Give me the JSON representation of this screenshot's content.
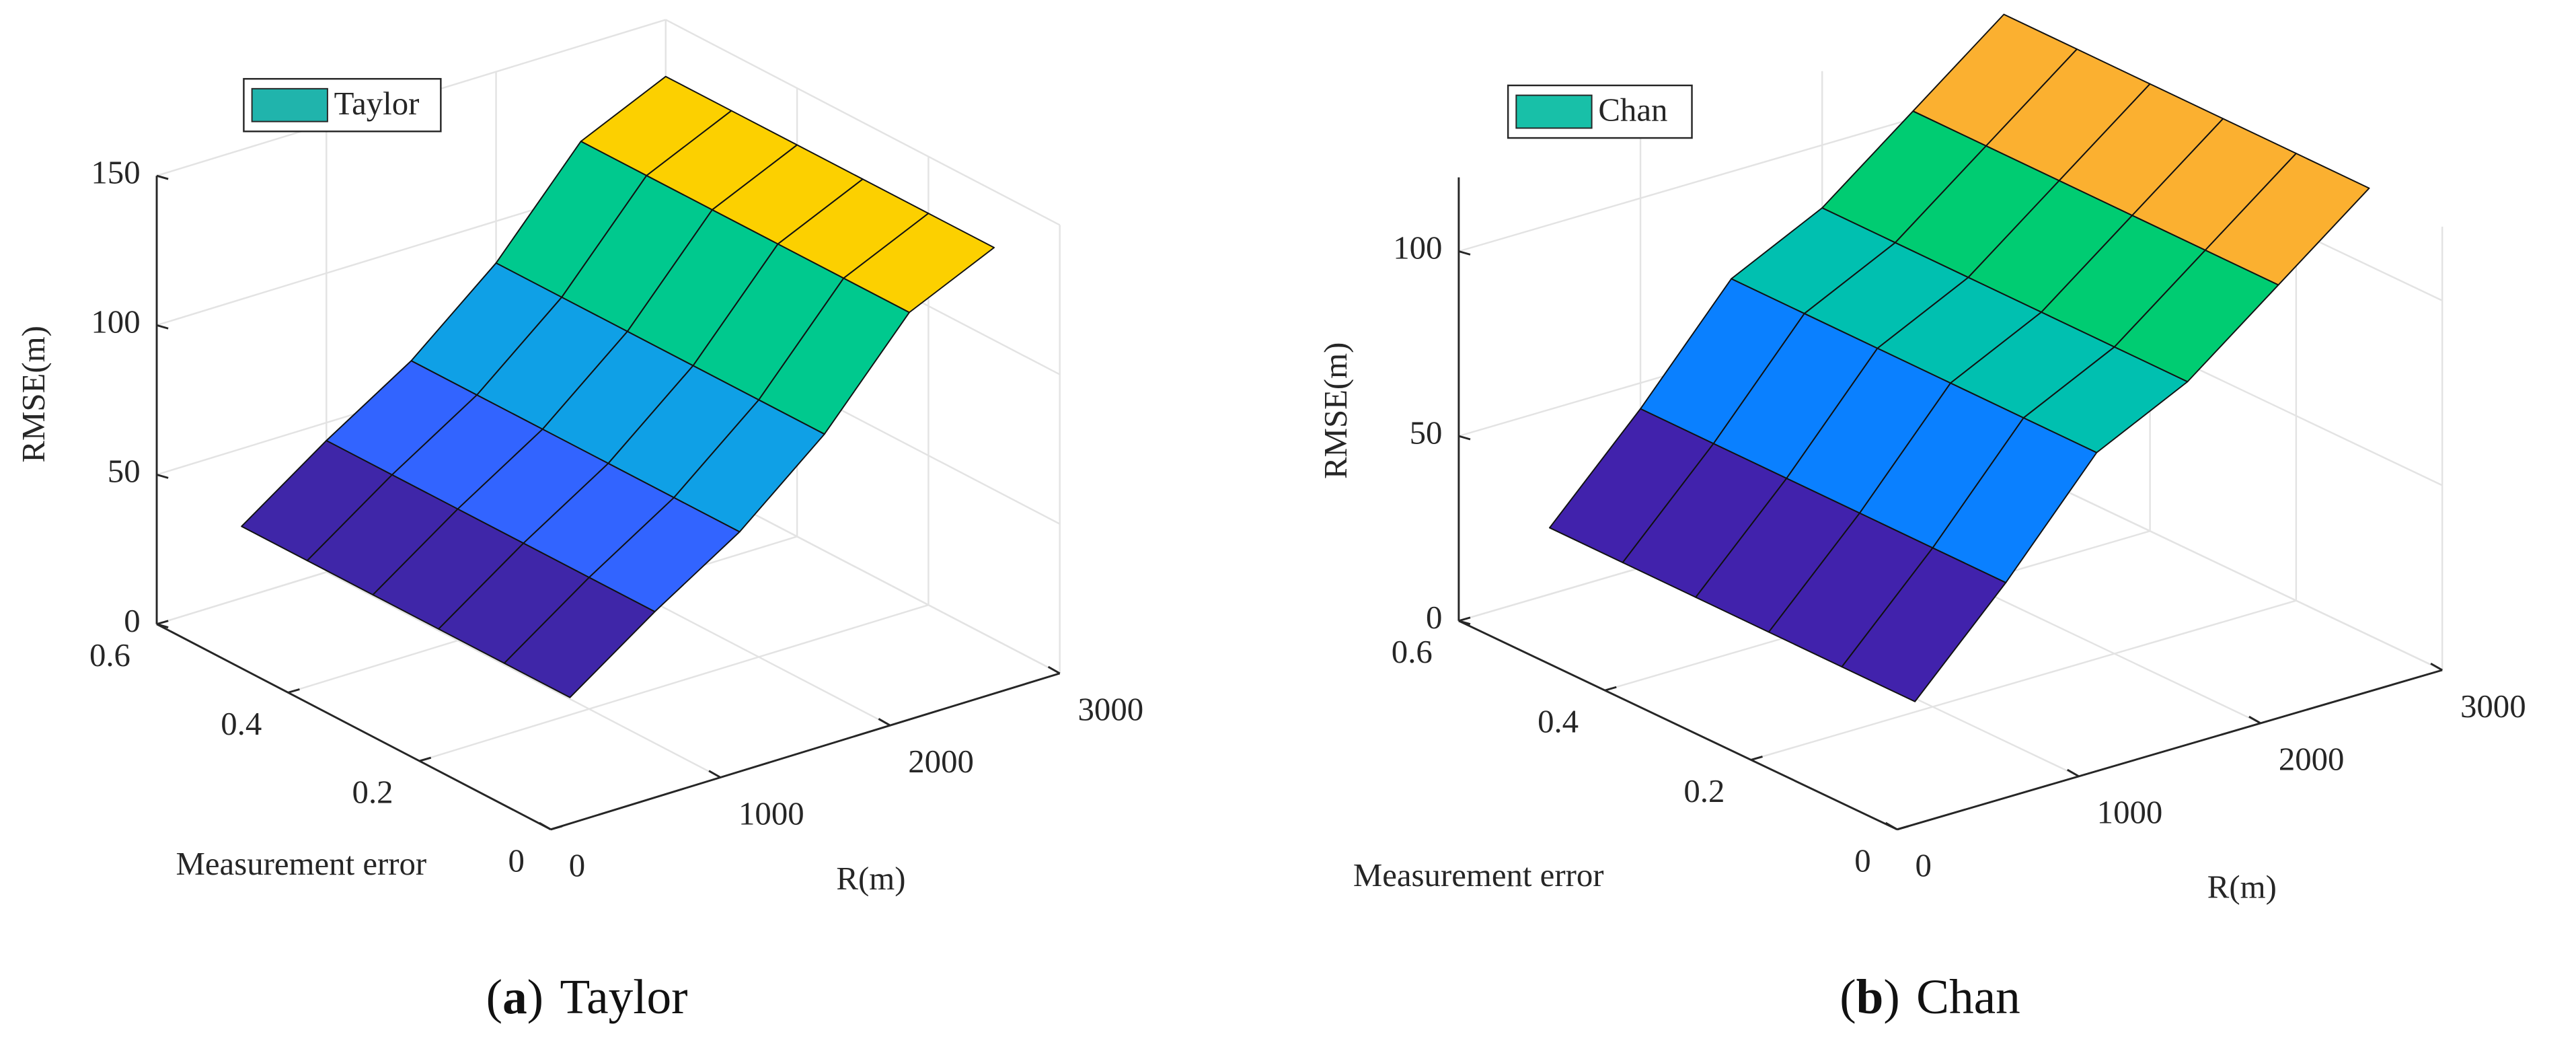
{
  "chart_data": [
    {
      "type": "surface",
      "legend": {
        "label": "Taylor",
        "color": "#20b4ac"
      },
      "xlabel": "R(m)",
      "ylabel": "Measurement error",
      "zlabel": "RMSE(m)",
      "caption": [
        "(",
        "a",
        ")",
        "Taylor"
      ],
      "x": [
        500,
        1000,
        1500,
        2000,
        2500,
        3000
      ],
      "y": [
        0.1,
        0.2,
        0.3,
        0.4,
        0.5,
        0.6
      ],
      "z": [
        [
          24,
          44,
          62,
          86,
          118,
          131
        ],
        [
          24,
          44,
          62,
          86,
          118,
          131
        ],
        [
          24,
          44,
          62,
          86,
          118,
          131
        ],
        [
          24,
          44,
          62,
          86,
          118,
          131
        ],
        [
          24,
          44,
          62,
          86,
          118,
          131
        ],
        [
          24,
          44,
          62,
          86,
          118,
          131
        ]
      ],
      "face_colors": [
        "#3f26a8",
        "#3264ff",
        "#0fa0e6",
        "#00c98e",
        "#fcd000"
      ],
      "xlim": [
        0,
        3000
      ],
      "xticks": [
        0,
        1000,
        2000,
        3000
      ],
      "ylim": [
        0,
        0.6
      ],
      "yticks": [
        0,
        0.2,
        0.4,
        0.6
      ],
      "zlim": [
        0,
        150
      ],
      "zticks": [
        0,
        50,
        100,
        150
      ],
      "grid": true
    },
    {
      "type": "surface",
      "legend": {
        "label": "Chan",
        "color": "#18c0a8"
      },
      "xlabel": "R(m)",
      "ylabel": "Measurement error",
      "zlabel": "RMSE(m)",
      "caption": [
        "(",
        "b",
        ")",
        "Chan"
      ],
      "x": [
        500,
        1000,
        1500,
        2000,
        2500,
        3000
      ],
      "y": [
        0.1,
        0.2,
        0.3,
        0.4,
        0.5,
        0.6
      ],
      "z": [
        [
          18,
          43,
          71,
          83,
          102,
          121
        ],
        [
          18,
          43,
          71,
          83,
          102,
          121
        ],
        [
          18,
          43,
          71,
          83,
          102,
          121
        ],
        [
          18,
          43,
          71,
          83,
          102,
          121
        ],
        [
          18,
          43,
          71,
          83,
          102,
          121
        ],
        [
          18,
          43,
          71,
          83,
          102,
          121
        ]
      ],
      "face_colors": [
        "#4122ac",
        "#0a80ff",
        "#00c0b0",
        "#00cc72",
        "#fbb030"
      ],
      "xlim": [
        0,
        3000
      ],
      "xticks": [
        0,
        1000,
        2000,
        3000
      ],
      "ylim": [
        0,
        0.6
      ],
      "yticks": [
        0,
        0.2,
        0.4,
        0.6
      ],
      "zlim": [
        0,
        120
      ],
      "zticks": [
        0,
        50,
        100
      ],
      "grid": true
    }
  ]
}
